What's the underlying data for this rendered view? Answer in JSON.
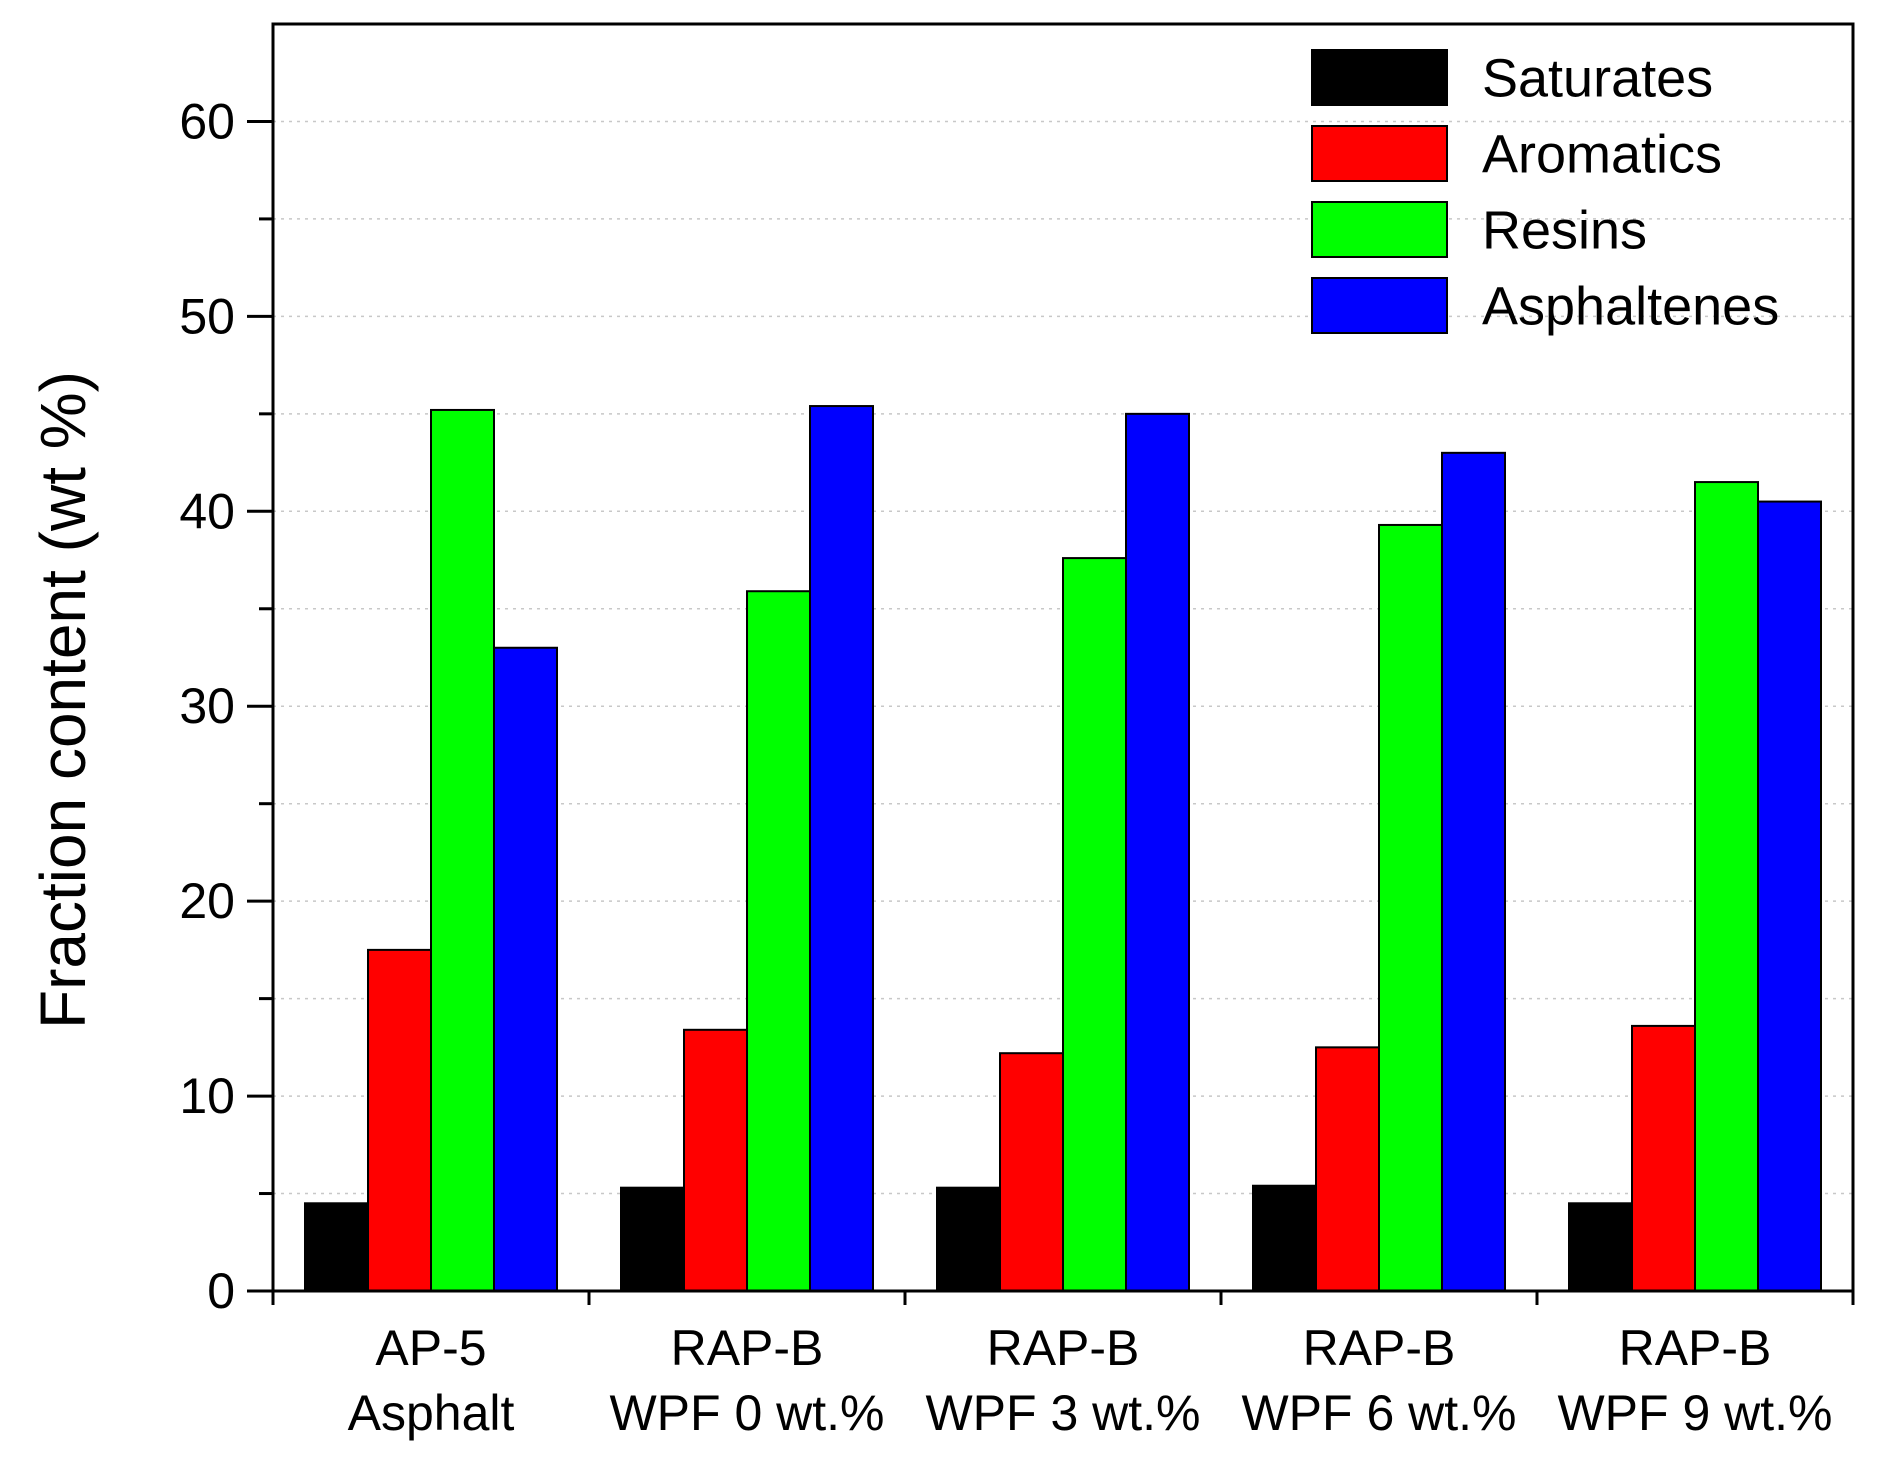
{
  "chart_data": {
    "type": "bar",
    "title": "",
    "xlabel": "",
    "ylabel": "Fraction content (wt %)",
    "ylim": [
      0,
      65
    ],
    "yticks": [
      0,
      10,
      20,
      30,
      40,
      50,
      60
    ],
    "grid": true,
    "legend_position": "top-right",
    "categories": [
      [
        "AP-5",
        "Asphalt"
      ],
      [
        "RAP-B",
        "WPF 0 wt.%"
      ],
      [
        "RAP-B",
        "WPF 3 wt.%"
      ],
      [
        "RAP-B",
        "WPF 6 wt.%"
      ],
      [
        "RAP-B",
        "WPF 9 wt.%"
      ]
    ],
    "series": [
      {
        "name": "Saturates",
        "color": "#000000",
        "values": [
          4.5,
          5.3,
          5.3,
          5.4,
          4.5
        ]
      },
      {
        "name": "Aromatics",
        "color": "#ff0000",
        "values": [
          17.5,
          13.4,
          12.2,
          12.5,
          13.6
        ]
      },
      {
        "name": "Resins",
        "color": "#00ff00",
        "values": [
          45.2,
          35.9,
          37.6,
          39.3,
          41.5
        ]
      },
      {
        "name": "Asphaltenes",
        "color": "#0000ff",
        "values": [
          33.0,
          45.4,
          45.0,
          43.0,
          40.5
        ]
      }
    ]
  }
}
